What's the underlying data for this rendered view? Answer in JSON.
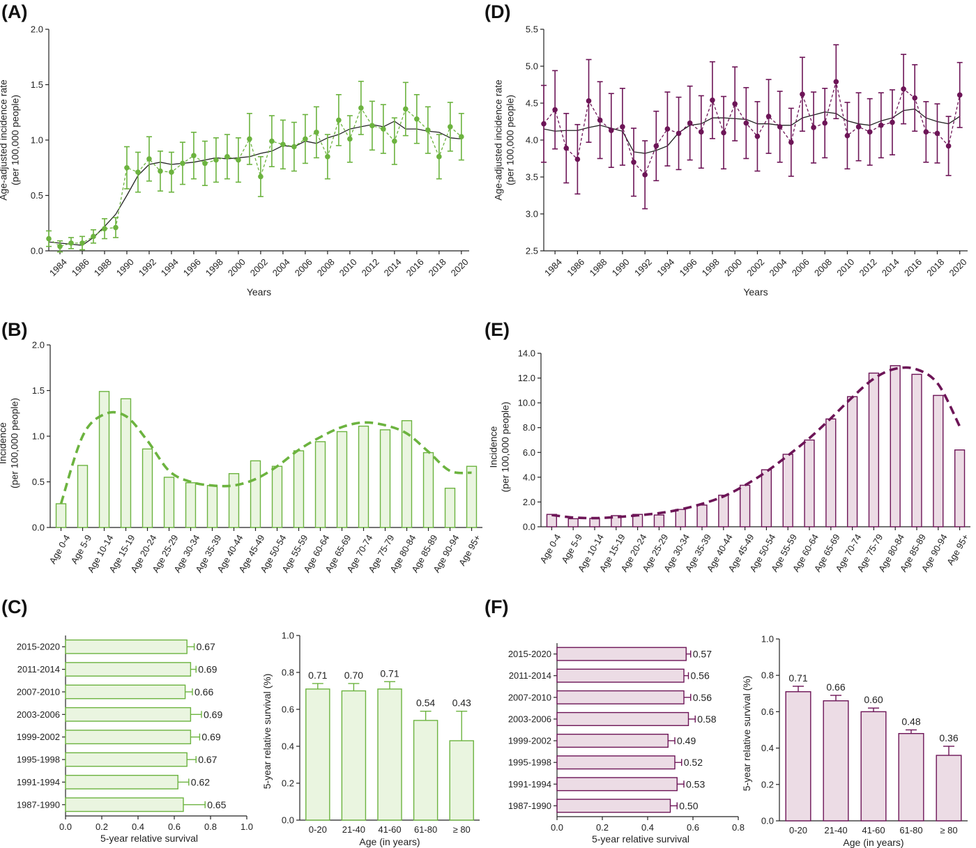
{
  "colors": {
    "green": "#6cb33f",
    "green_fill": "#eaf5e0",
    "purple": "#6d1557",
    "purple_fill": "#ecdce5",
    "trend": "#222222"
  },
  "panels": {
    "A": {
      "label": "(A)"
    },
    "B": {
      "label": "(B)"
    },
    "C": {
      "label": "(C)"
    },
    "D": {
      "label": "(D)"
    },
    "E": {
      "label": "(E)"
    },
    "F": {
      "label": "(F)"
    }
  },
  "chart_data": [
    {
      "id": "A",
      "type": "line",
      "color": "green",
      "xlabel": "Years",
      "ylabel": [
        "Age-adjusted incidence rate",
        "(per 100,000 people)"
      ],
      "ylim": [
        0,
        2.0
      ],
      "yticks": [
        0,
        0.5,
        1.0,
        1.5,
        2.0
      ],
      "ytick_decimals": 1,
      "xlim": [
        1983,
        2020.7
      ],
      "xticks": [
        1984,
        1986,
        1988,
        1990,
        1992,
        1994,
        1996,
        1998,
        2000,
        2002,
        2004,
        2006,
        2008,
        2010,
        2012,
        2014,
        2016,
        2018,
        2020
      ],
      "x": [
        1983,
        1984,
        1985,
        1986,
        1987,
        1988,
        1989,
        1990,
        1991,
        1992,
        1993,
        1994,
        1995,
        1996,
        1997,
        1998,
        1999,
        2000,
        2001,
        2002,
        2003,
        2004,
        2005,
        2006,
        2007,
        2008,
        2009,
        2010,
        2011,
        2012,
        2013,
        2014,
        2015,
        2016,
        2017,
        2018,
        2019,
        2020
      ],
      "series": [
        {
          "style": "observed",
          "values": [
            0.11,
            0.04,
            0.07,
            0.07,
            0.13,
            0.2,
            0.21,
            0.75,
            0.71,
            0.83,
            0.72,
            0.71,
            0.79,
            0.86,
            0.79,
            0.82,
            0.85,
            0.82,
            1.01,
            0.67,
            0.99,
            0.96,
            0.94,
            1.01,
            1.07,
            0.85,
            1.18,
            1.01,
            1.29,
            1.13,
            1.1,
            0.99,
            1.28,
            1.19,
            1.09,
            0.85,
            1.12,
            1.03
          ],
          "err": [
            0.07,
            0.05,
            0.05,
            0.06,
            0.06,
            0.09,
            0.09,
            0.19,
            0.18,
            0.2,
            0.18,
            0.18,
            0.19,
            0.21,
            0.2,
            0.2,
            0.2,
            0.2,
            0.23,
            0.18,
            0.23,
            0.22,
            0.22,
            0.22,
            0.23,
            0.2,
            0.23,
            0.21,
            0.24,
            0.22,
            0.22,
            0.21,
            0.24,
            0.22,
            0.21,
            0.2,
            0.22,
            0.21
          ]
        },
        {
          "style": "trend",
          "values": [
            0.08,
            0.07,
            0.06,
            0.05,
            0.12,
            0.22,
            0.33,
            0.5,
            0.68,
            0.78,
            0.8,
            0.78,
            0.79,
            0.8,
            0.82,
            0.84,
            0.83,
            0.84,
            0.85,
            0.88,
            0.9,
            0.95,
            0.94,
            0.99,
            0.97,
            1.02,
            1.05,
            1.1,
            1.12,
            1.14,
            1.12,
            1.17,
            1.1,
            1.1,
            1.08,
            1.07,
            1.02,
            1.01
          ]
        }
      ]
    },
    {
      "id": "D",
      "type": "line",
      "color": "purple",
      "xlabel": "Years",
      "ylabel": [
        "Age-adjusted incidence rate",
        "(per 100,000 people)"
      ],
      "ylim": [
        2.5,
        5.5
      ],
      "yticks": [
        2.5,
        3.0,
        3.5,
        4.0,
        4.5,
        5.0,
        5.5
      ],
      "ytick_decimals": 1,
      "xlim": [
        1983,
        2020.7
      ],
      "xticks": [
        1984,
        1986,
        1988,
        1990,
        1992,
        1994,
        1996,
        1998,
        2000,
        2002,
        2004,
        2006,
        2008,
        2010,
        2012,
        2014,
        2016,
        2018,
        2020
      ],
      "x": [
        1983,
        1984,
        1985,
        1986,
        1987,
        1988,
        1989,
        1990,
        1991,
        1992,
        1993,
        1994,
        1995,
        1996,
        1997,
        1998,
        1999,
        2000,
        2001,
        2002,
        2003,
        2004,
        2005,
        2006,
        2007,
        2008,
        2009,
        2010,
        2011,
        2012,
        2013,
        2014,
        2015,
        2016,
        2017,
        2018,
        2019,
        2020
      ],
      "series": [
        {
          "style": "observed",
          "values": [
            4.22,
            4.41,
            3.89,
            3.74,
            4.53,
            4.27,
            4.13,
            4.18,
            3.7,
            3.53,
            3.92,
            4.15,
            4.09,
            4.23,
            4.11,
            4.54,
            4.1,
            4.49,
            4.23,
            4.05,
            4.32,
            4.18,
            3.97,
            4.62,
            4.17,
            4.23,
            4.79,
            4.06,
            4.18,
            4.11,
            4.2,
            4.24,
            4.69,
            4.57,
            4.11,
            4.09,
            3.92,
            4.61
          ],
          "err": [
            0.52,
            0.53,
            0.47,
            0.47,
            0.56,
            0.52,
            0.5,
            0.52,
            0.46,
            0.46,
            0.47,
            0.5,
            0.49,
            0.5,
            0.49,
            0.52,
            0.49,
            0.5,
            0.48,
            0.47,
            0.5,
            0.48,
            0.46,
            0.5,
            0.48,
            0.47,
            0.5,
            0.45,
            0.46,
            0.45,
            0.44,
            0.44,
            0.47,
            0.45,
            0.41,
            0.4,
            0.4,
            0.44
          ]
        },
        {
          "style": "trend",
          "values": [
            4.15,
            4.12,
            4.13,
            4.13,
            4.17,
            4.2,
            4.16,
            4.12,
            3.84,
            3.82,
            3.86,
            3.92,
            4.1,
            4.2,
            4.22,
            4.3,
            4.3,
            4.29,
            4.28,
            4.22,
            4.22,
            4.2,
            4.2,
            4.3,
            4.34,
            4.38,
            4.36,
            4.26,
            4.22,
            4.2,
            4.26,
            4.3,
            4.4,
            4.42,
            4.3,
            4.25,
            4.22,
            4.32
          ]
        }
      ]
    },
    {
      "id": "B",
      "type": "bar",
      "color": "green",
      "ylabel": [
        "Incidence",
        "(per 100,000 people)"
      ],
      "ylim": [
        0,
        2.0
      ],
      "yticks": [
        0,
        0.5,
        1.0,
        1.5,
        2.0
      ],
      "ytick_decimals": 1,
      "categories": [
        "Age 0-4",
        "Age 5-9",
        "Age 10-14",
        "Age 15-19",
        "Age 20-24",
        "Age 25-29",
        "Age 30-34",
        "Age 35-39",
        "Age 40-44",
        "Age 45-49",
        "Age 50-54",
        "Age 55-59",
        "Age 60-64",
        "Age 65-69",
        "Age 70-74",
        "Age 75-79",
        "Age 80-84",
        "Age 85-89",
        "Age 90-94",
        "Age 95+"
      ],
      "values": [
        0.26,
        0.68,
        1.49,
        1.41,
        0.86,
        0.55,
        0.49,
        0.46,
        0.59,
        0.73,
        0.67,
        0.84,
        0.94,
        1.05,
        1.11,
        1.07,
        1.17,
        0.82,
        0.43,
        0.67
      ],
      "fit": [
        0.26,
        1.0,
        1.24,
        1.22,
        0.95,
        0.62,
        0.5,
        0.46,
        0.46,
        0.53,
        0.67,
        0.85,
        0.99,
        1.1,
        1.15,
        1.12,
        1.03,
        0.83,
        0.62,
        0.6
      ]
    },
    {
      "id": "E",
      "type": "bar",
      "color": "purple",
      "ylabel": [
        "Incidence",
        "(per 100,000 people)"
      ],
      "ylim": [
        0,
        14.0
      ],
      "yticks": [
        0,
        2.0,
        4.0,
        6.0,
        8.0,
        10.0,
        12.0,
        14.0
      ],
      "ytick_decimals": 1,
      "categories": [
        "Age 0-4",
        "Age 5-9",
        "Age 10-14",
        "Age 15-19",
        "Age 20-24",
        "Age 25-29",
        "Age 30-34",
        "Age 35-39",
        "Age 40-44",
        "Age 45-49",
        "Age 50-54",
        "Age 55-59",
        "Age 60-64",
        "Age 65-69",
        "Age 70-74",
        "Age 75-79",
        "Age 80-84",
        "Age 85-89",
        "Age 90-94",
        "Age 95+"
      ],
      "values": [
        1.0,
        0.65,
        0.68,
        0.9,
        1.0,
        0.95,
        1.4,
        1.75,
        2.55,
        3.35,
        4.6,
        5.85,
        7.0,
        8.7,
        10.5,
        12.4,
        13.0,
        12.3,
        10.6,
        6.2
      ],
      "fit": [
        0.95,
        0.75,
        0.7,
        0.78,
        0.92,
        1.1,
        1.4,
        1.85,
        2.45,
        3.35,
        4.45,
        5.75,
        7.15,
        8.75,
        10.45,
        11.95,
        12.75,
        12.7,
        11.5,
        8.1
      ]
    },
    {
      "id": "C1",
      "type": "bar",
      "orientation": "horizontal",
      "color": "green",
      "xlabel": "5-year relative survival",
      "xlim": [
        0,
        1.0
      ],
      "xticks": [
        0,
        0.2,
        0.4,
        0.6,
        0.8,
        1.0
      ],
      "xtick_decimals": 1,
      "categories": [
        "2015-2020",
        "2011-2014",
        "2007-2010",
        "2003-2006",
        "1999-2002",
        "1995-1998",
        "1991-1994",
        "1987-1990"
      ],
      "values": [
        0.67,
        0.69,
        0.66,
        0.69,
        0.69,
        0.67,
        0.62,
        0.65
      ],
      "value_labels": [
        "0.67",
        "0.69",
        "0.66",
        "0.69",
        "0.69",
        "0.67",
        "0.62",
        "0.65"
      ],
      "err": [
        0.04,
        0.03,
        0.04,
        0.06,
        0.05,
        0.05,
        0.06,
        0.12
      ]
    },
    {
      "id": "C2",
      "type": "bar",
      "color": "green",
      "xlabel": "Age (in years)",
      "ylabel": [
        "5-year relative survival (%)"
      ],
      "ylim": [
        0,
        1.0
      ],
      "yticks": [
        0,
        0.2,
        0.4,
        0.6,
        0.8,
        1.0
      ],
      "ytick_decimals": 1,
      "categories": [
        "0-20",
        "21-40",
        "41-60",
        "61-80",
        "≥ 80"
      ],
      "values": [
        0.71,
        0.7,
        0.71,
        0.54,
        0.43
      ],
      "value_labels": [
        "0.71",
        "0.70",
        "0.71",
        "0.54",
        "0.43"
      ],
      "err": [
        0.03,
        0.04,
        0.04,
        0.05,
        0.16
      ]
    },
    {
      "id": "F1",
      "type": "bar",
      "orientation": "horizontal",
      "color": "purple",
      "xlabel": "5-year relative survival",
      "xlim": [
        0,
        0.8
      ],
      "xticks": [
        0,
        0.2,
        0.4,
        0.6,
        0.8
      ],
      "xtick_decimals": 1,
      "categories": [
        "2015-2020",
        "2011-2014",
        "2007-2010",
        "2003-2006",
        "1999-2002",
        "1995-1998",
        "1991-1994",
        "1987-1990"
      ],
      "values": [
        0.57,
        0.56,
        0.56,
        0.58,
        0.49,
        0.52,
        0.53,
        0.5
      ],
      "value_labels": [
        "0.57",
        "0.56",
        "0.56",
        "0.58",
        "0.49",
        "0.52",
        "0.53",
        "0.50"
      ],
      "err": [
        0.02,
        0.02,
        0.03,
        0.03,
        0.03,
        0.03,
        0.03,
        0.03
      ]
    },
    {
      "id": "F2",
      "type": "bar",
      "color": "purple",
      "xlabel": "Age (in years)",
      "ylabel": [
        "5-year relative survival (%)"
      ],
      "ylim": [
        0,
        1.0
      ],
      "yticks": [
        0,
        0.2,
        0.4,
        0.6,
        0.8,
        1.0
      ],
      "ytick_decimals": 1,
      "categories": [
        "0-20",
        "21-40",
        "41-60",
        "61-80",
        "≥ 80"
      ],
      "values": [
        0.71,
        0.66,
        0.6,
        0.48,
        0.36
      ],
      "value_labels": [
        "0.71",
        "0.66",
        "0.60",
        "0.48",
        "0.36"
      ],
      "err": [
        0.03,
        0.03,
        0.02,
        0.02,
        0.05
      ]
    }
  ]
}
